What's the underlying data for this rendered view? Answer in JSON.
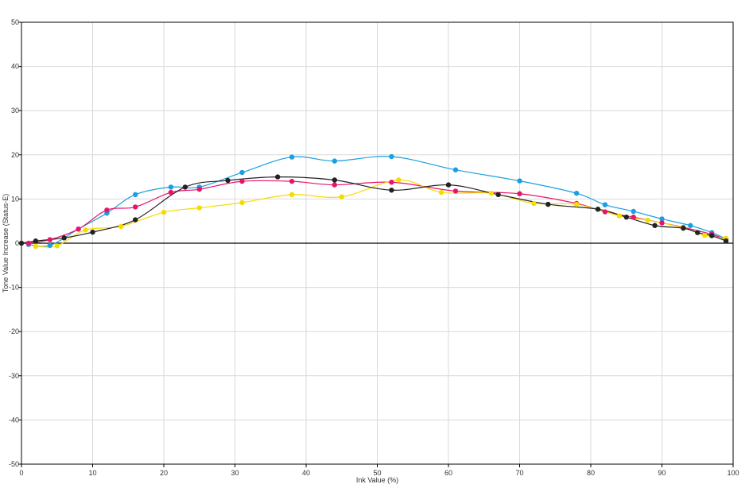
{
  "chart_data": {
    "type": "line",
    "xlabel": "Ink Value (%)",
    "ylabel": "Tone Value Increase (Status-E)",
    "xlim": [
      0,
      100
    ],
    "ylim": [
      -50,
      50
    ],
    "x_ticks": [
      0,
      10,
      20,
      30,
      40,
      50,
      60,
      70,
      80,
      90,
      100
    ],
    "y_ticks": [
      -50,
      -40,
      -30,
      -20,
      -10,
      0,
      10,
      20,
      30,
      40,
      50
    ],
    "grid": true,
    "legend": "none",
    "series": [
      {
        "color": "#1a9fe0",
        "points": [
          [
            1,
            -0.3
          ],
          [
            4,
            -0.5
          ],
          [
            8,
            3.2
          ],
          [
            12,
            6.8
          ],
          [
            16,
            11
          ],
          [
            21,
            12.7
          ],
          [
            25,
            12.7
          ],
          [
            31,
            16
          ],
          [
            38,
            19.5
          ],
          [
            44,
            18.6
          ],
          [
            52,
            19.6
          ],
          [
            61,
            16.6
          ],
          [
            70,
            14.1
          ],
          [
            78,
            11.3
          ],
          [
            82,
            8.7
          ],
          [
            86,
            7.2
          ],
          [
            90,
            5.5
          ],
          [
            94,
            4
          ],
          [
            97,
            2.4
          ],
          [
            99,
            1
          ]
        ]
      },
      {
        "color": "#e8146c",
        "points": [
          [
            1,
            0
          ],
          [
            4,
            0.8
          ],
          [
            8,
            3.2
          ],
          [
            12,
            7.5
          ],
          [
            16,
            8.2
          ],
          [
            21,
            11.5
          ],
          [
            25,
            12.2
          ],
          [
            31,
            14
          ],
          [
            38,
            14
          ],
          [
            44,
            13.2
          ],
          [
            52,
            13.8
          ],
          [
            61,
            11.8
          ],
          [
            70,
            11.2
          ],
          [
            78,
            9
          ],
          [
            82,
            7.1
          ],
          [
            86,
            5.9
          ],
          [
            90,
            4.6
          ],
          [
            93,
            3.6
          ],
          [
            97,
            2
          ],
          [
            99,
            0.8
          ]
        ]
      },
      {
        "color": "#f5dc00",
        "points": [
          [
            2,
            -0.7
          ],
          [
            5,
            -0.6
          ],
          [
            9,
            3
          ],
          [
            14,
            3.8
          ],
          [
            20,
            7
          ],
          [
            25,
            8
          ],
          [
            31,
            9.2
          ],
          [
            38,
            11
          ],
          [
            45,
            10.5
          ],
          [
            53,
            14.3
          ],
          [
            59,
            11.5
          ],
          [
            66,
            11.3
          ],
          [
            72,
            9
          ],
          [
            78,
            8.8
          ],
          [
            84,
            6.2
          ],
          [
            88,
            5.2
          ],
          [
            93,
            3.5
          ],
          [
            96,
            1.8
          ],
          [
            99,
            1.1
          ]
        ]
      },
      {
        "color": "#222222",
        "points": [
          [
            0,
            0
          ],
          [
            2,
            0.5
          ],
          [
            6,
            1.2
          ],
          [
            10,
            2.5
          ],
          [
            16,
            5.3
          ],
          [
            23,
            12.7
          ],
          [
            29,
            14.2
          ],
          [
            36,
            15
          ],
          [
            44,
            14.3
          ],
          [
            52,
            12
          ],
          [
            60,
            13.2
          ],
          [
            67,
            11
          ],
          [
            74,
            8.8
          ],
          [
            81,
            7.7
          ],
          [
            85,
            5.9
          ],
          [
            89,
            4
          ],
          [
            93,
            3.4
          ],
          [
            95,
            2.4
          ],
          [
            97,
            1.7
          ],
          [
            99,
            0.5
          ]
        ]
      }
    ]
  }
}
